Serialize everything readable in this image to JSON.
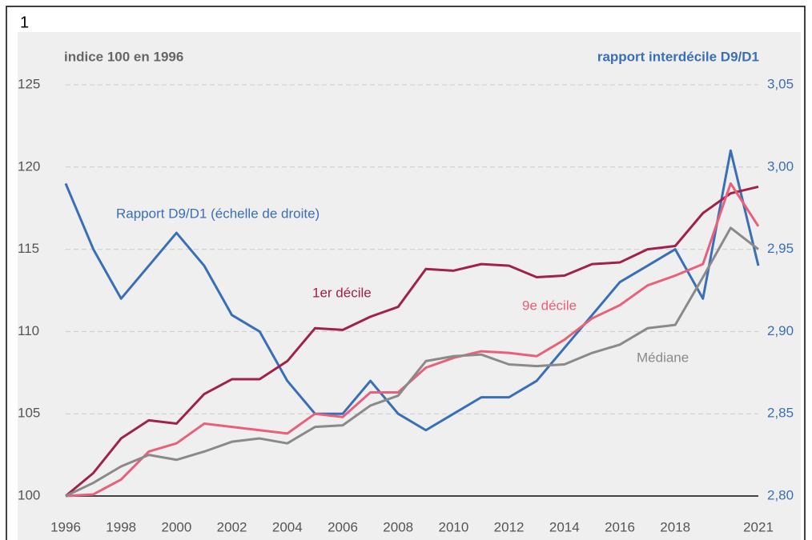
{
  "page_label": "1",
  "chart_data": {
    "type": "line",
    "y_axis_label": "indice 100 en 1996",
    "y2_axis_label": "rapport interdécile D9/D1",
    "x": [
      1996,
      1997,
      1998,
      1999,
      2000,
      2001,
      2002,
      2003,
      2004,
      2005,
      2006,
      2007,
      2008,
      2009,
      2010,
      2011,
      2012,
      2013,
      2014,
      2015,
      2016,
      2017,
      2018,
      2019,
      2020,
      2021
    ],
    "xlim": [
      1996,
      2021
    ],
    "xticks": [
      1996,
      1998,
      2000,
      2002,
      2004,
      2006,
      2008,
      2010,
      2012,
      2014,
      2016,
      2018,
      2021
    ],
    "ylim": [
      100,
      125
    ],
    "yticks": [
      100,
      105,
      110,
      115,
      120,
      125
    ],
    "y2lim": [
      2.8,
      3.05
    ],
    "y2ticks": [
      {
        "value": 2.8,
        "label": "2,80"
      },
      {
        "value": 2.85,
        "label": "2,85"
      },
      {
        "value": 2.9,
        "label": "2,90"
      },
      {
        "value": 2.95,
        "label": "2,95"
      },
      {
        "value": 3.0,
        "label": "3,00"
      },
      {
        "value": 3.05,
        "label": "3,05"
      }
    ],
    "grid": true,
    "series": [
      {
        "name": "Rapport D9/D1 (échelle de droite)",
        "color": "#3a6fb5",
        "axis": "y2",
        "values": [
          2.99,
          2.95,
          2.92,
          2.94,
          2.96,
          2.94,
          2.91,
          2.9,
          2.87,
          2.85,
          2.85,
          2.87,
          2.85,
          2.84,
          2.85,
          2.86,
          2.86,
          2.87,
          2.89,
          2.91,
          2.93,
          2.94,
          2.95,
          2.92,
          3.01,
          2.94
        ]
      },
      {
        "name": "1er décile",
        "color": "#a0224a",
        "values": [
          100,
          101.4,
          103.5,
          104.6,
          104.4,
          106.2,
          107.1,
          107.1,
          108.2,
          110.2,
          110.1,
          110.9,
          111.5,
          113.8,
          113.7,
          114.1,
          114.0,
          113.3,
          113.4,
          114.1,
          114.2,
          115.0,
          115.2,
          117.2,
          118.4,
          118.8
        ]
      },
      {
        "name": "9e décile",
        "color": "#e8607a",
        "values": [
          100,
          100.1,
          101.0,
          102.7,
          103.2,
          104.4,
          104.2,
          104.0,
          103.8,
          105.0,
          104.8,
          106.3,
          106.3,
          107.8,
          108.4,
          108.8,
          108.7,
          108.5,
          109.5,
          110.8,
          111.6,
          112.8,
          113.4,
          114.1,
          119.0,
          116.4
        ]
      },
      {
        "name": "Médiane",
        "color": "#8a8a8a",
        "values": [
          100,
          100.8,
          101.8,
          102.5,
          102.2,
          102.7,
          103.3,
          103.5,
          103.2,
          104.2,
          104.3,
          105.5,
          106.1,
          108.2,
          108.5,
          108.6,
          108.0,
          107.9,
          108.0,
          108.7,
          109.2,
          110.2,
          110.4,
          113.3,
          116.3,
          115.0
        ]
      }
    ]
  }
}
